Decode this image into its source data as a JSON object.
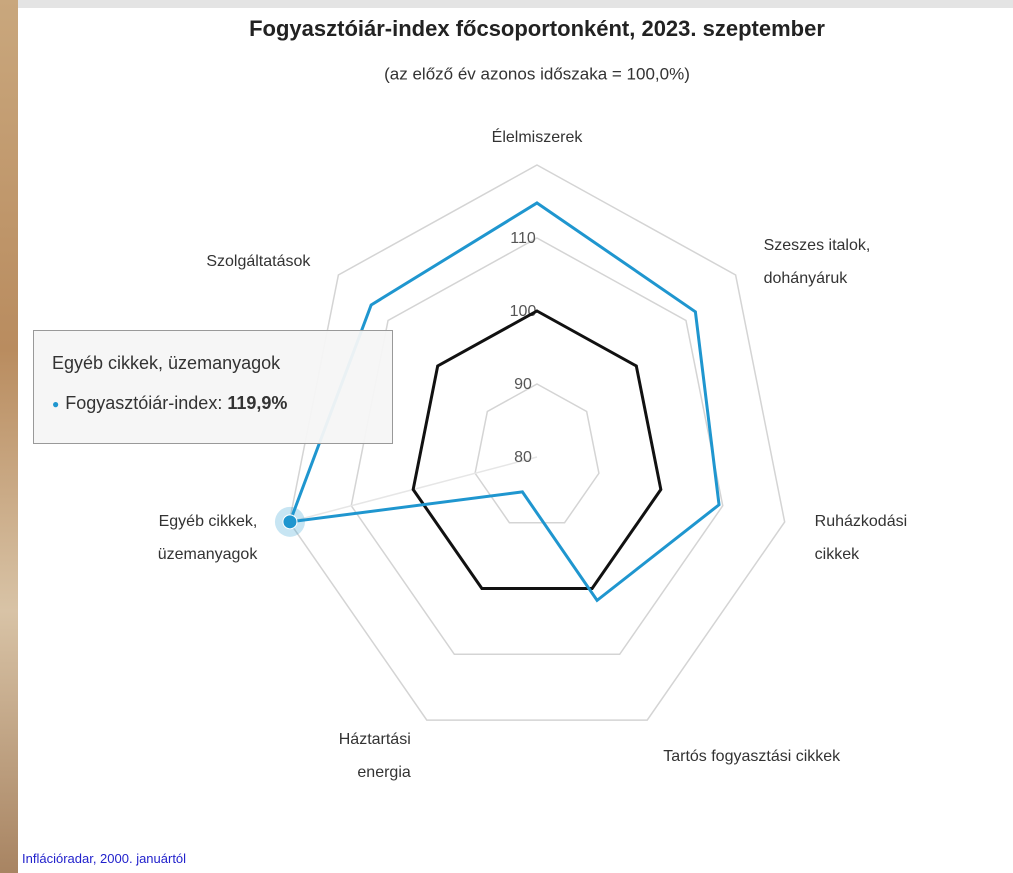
{
  "chart_data": {
    "type": "radar",
    "title": "Fogyasztóiár-index főcsoportonként, 2023. szeptember",
    "subtitle": "(az előző év azonos időszaka = 100,0%)",
    "categories": [
      "Élelmiszerek",
      "Szeszes italok, dohányáruk",
      "Ruházkodási cikkek",
      "Tartós fogyasztási cikkek",
      "Háztartási energia",
      "Egyéb cikkek, üzemanyagok",
      "Szolgáltatások"
    ],
    "series": [
      {
        "color": "#1f96cf",
        "values": [
          114.8,
          111.9,
          109.4,
          101.8,
          85.3,
          119.9,
          113.4
        ]
      },
      {
        "color": "#111111",
        "values": [
          100,
          100,
          100,
          100,
          100,
          100,
          100
        ]
      }
    ],
    "ylim": [
      80,
      120
    ],
    "yticks": [
      80,
      90,
      100,
      110
    ],
    "grid": true,
    "tooltip": {
      "title": "Egyéb cikkek, üzemanyagok",
      "label": "Fogyasztóiár-index:",
      "value": "119,9%"
    },
    "footer": "Inflációradar, 2000. januártól"
  }
}
